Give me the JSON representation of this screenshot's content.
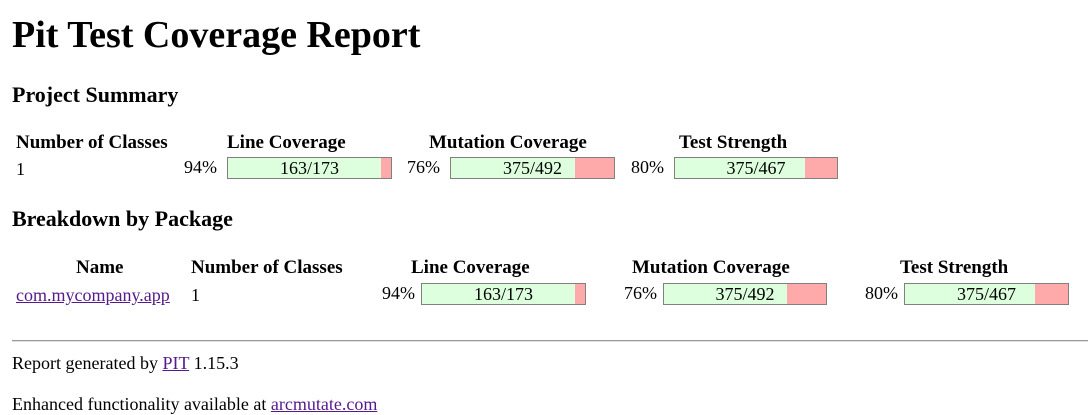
{
  "page": {
    "title": "Pit Test Coverage Report"
  },
  "project_summary": {
    "heading": "Project Summary",
    "headers": {
      "classes": "Number of Classes",
      "line": "Line Coverage",
      "mutation": "Mutation Coverage",
      "strength": "Test Strength"
    },
    "classes": "1",
    "line": {
      "percent": "94%",
      "ratio": "163/173",
      "fill": 0.94
    },
    "mutation": {
      "percent": "76%",
      "ratio": "375/492",
      "fill": 0.76
    },
    "strength": {
      "percent": "80%",
      "ratio": "375/467",
      "fill": 0.8
    }
  },
  "breakdown": {
    "heading": "Breakdown by Package",
    "headers": {
      "name": "Name",
      "classes": "Number of Classes",
      "line": "Line Coverage",
      "mutation": "Mutation Coverage",
      "strength": "Test Strength"
    },
    "rows": [
      {
        "name": "com.mycompany.app",
        "classes": "1",
        "line": {
          "percent": "94%",
          "ratio": "163/173",
          "fill": 0.94
        },
        "mutation": {
          "percent": "76%",
          "ratio": "375/492",
          "fill": 0.76
        },
        "strength": {
          "percent": "80%",
          "ratio": "375/467",
          "fill": 0.8
        }
      }
    ]
  },
  "footer": {
    "generated_prefix": "Report generated by",
    "pit_link": "PIT",
    "version": "1.15.3",
    "enhanced_prefix": "Enhanced functionality available at",
    "arcmutate_link": "arcmutate.com"
  },
  "colors": {
    "covered": "#ddffdd",
    "uncovered": "#ffaaaa",
    "link": "#551a8b"
  }
}
